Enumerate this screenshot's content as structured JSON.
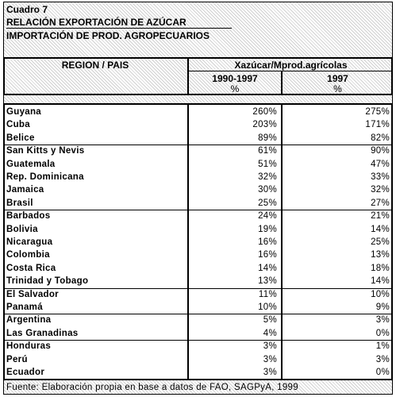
{
  "header": {
    "label": "Cuadro 7",
    "title": "RELACIÓN EXPORTACIÓN DE AZÚCAR",
    "subtitle": "IMPORTACIÓN DE PROD. AGROPECUARIOS"
  },
  "table": {
    "columns": [
      "REGION / PAIS",
      "Xazúcar/Mprod.agrícolas"
    ],
    "periods": [
      "1990-1997",
      "1997"
    ],
    "units": [
      "%",
      "%"
    ],
    "rows": [
      [
        "Guyana",
        "260%",
        "275%"
      ],
      [
        "Cuba",
        "203%",
        "171%"
      ],
      [
        "Belice",
        "89%",
        "82%"
      ],
      [
        "San Kitts y Nevis",
        "61%",
        "90%"
      ],
      [
        "Guatemala",
        "51%",
        "47%"
      ],
      [
        "Rep. Dominicana",
        "32%",
        "33%"
      ],
      [
        "Jamaica",
        "30%",
        "32%"
      ],
      [
        "Brasil",
        "25%",
        "27%"
      ],
      [
        "Barbados",
        "24%",
        "21%"
      ],
      [
        "Bolivia",
        "19%",
        "14%"
      ],
      [
        "Nicaragua",
        "16%",
        "25%"
      ],
      [
        "Colombia",
        "16%",
        "13%"
      ],
      [
        "Costa Rica",
        "14%",
        "18%"
      ],
      [
        "Trinidad y Tobago",
        "13%",
        "14%"
      ],
      [
        "El Salvador",
        "11%",
        "10%"
      ],
      [
        "Panamá",
        "10%",
        "9%"
      ],
      [
        "Argentina",
        "5%",
        "3%"
      ],
      [
        "Las Granadinas",
        "4%",
        "0%"
      ],
      [
        "Honduras",
        "3%",
        "1%"
      ],
      [
        "Perú",
        "3%",
        "3%"
      ],
      [
        "Ecuador",
        "3%",
        "0%"
      ]
    ]
  },
  "footer": "Fuente: Elaboración propia en base a datos de FAO, SAGPyA, 1999"
}
